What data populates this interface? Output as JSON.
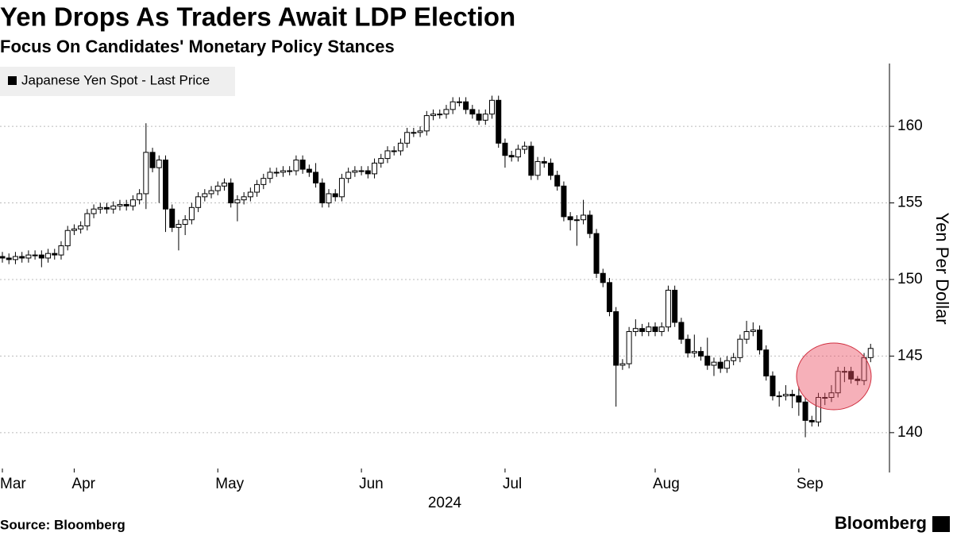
{
  "chart_data": {
    "type": "candlestick",
    "title": "Yen Drops As Traders Await LDP Election",
    "subtitle": "Focus On Candidates' Monetary Policy Stances",
    "x_label": "2024",
    "y_label": "Yen Per Dollar",
    "ylim": [
      137.4,
      164.1
    ],
    "yticks": [
      140,
      145,
      150,
      155,
      160
    ],
    "grid": true,
    "xticks": [
      {
        "value": 0,
        "label": "Mar"
      },
      {
        "value": 11,
        "label": "Apr"
      },
      {
        "value": 33,
        "label": "May"
      },
      {
        "value": 55,
        "label": "Jun"
      },
      {
        "value": 77,
        "label": "Jul"
      },
      {
        "value": 100,
        "label": "Aug"
      },
      {
        "value": 122,
        "label": "Sep"
      }
    ],
    "series": [
      {
        "name": "Japanese Yen Spot - Last Price",
        "color": "#000000",
        "up_color": "#ffffff",
        "open": [
          151.5,
          151.4,
          151.3,
          151.5,
          151.4,
          151.6,
          151.6,
          151.4,
          151.7,
          151.6,
          152.2,
          153.2,
          153.3,
          153.5,
          154.3,
          154.6,
          154.7,
          154.6,
          154.8,
          154.9,
          154.8,
          155.2,
          155.6,
          158.3,
          157.3,
          157.8,
          154.6,
          153.4,
          153.6,
          153.9,
          154.7,
          155.4,
          155.6,
          155.8,
          156.1,
          156.3,
          155.0,
          155.2,
          155.4,
          155.7,
          156.2,
          156.6,
          157.0,
          157.0,
          157.1,
          157.1,
          157.8,
          157.2,
          157.0,
          156.3,
          155.0,
          155.6,
          155.4,
          156.6,
          157.0,
          157.1,
          157.1,
          156.9,
          157.6,
          157.9,
          158.4,
          158.4,
          158.9,
          159.6,
          159.6,
          159.7,
          160.7,
          160.8,
          160.8,
          161.1,
          161.6,
          161.6,
          161.1,
          160.8,
          160.4,
          160.8,
          161.7,
          158.9,
          158.1,
          158.0,
          158.5,
          158.7,
          156.8,
          157.7,
          157.6,
          156.8,
          156.1,
          154.1,
          153.9,
          153.9,
          154.2,
          153.0,
          150.4,
          149.8,
          147.9,
          144.4,
          144.5,
          146.6,
          146.8,
          146.6,
          146.9,
          146.6,
          146.9,
          149.3,
          147.2,
          146.1,
          145.2,
          145.3,
          145.0,
          144.4,
          144.6,
          144.2,
          144.7,
          144.9,
          146.1,
          146.6,
          146.7,
          145.4,
          143.7,
          142.4,
          142.4,
          142.5,
          142.4,
          142.0,
          140.8,
          140.7,
          142.3,
          142.3,
          142.6,
          144.0,
          144.0,
          143.5,
          143.4,
          144.9
        ],
        "high": [
          151.8,
          151.7,
          151.8,
          151.8,
          151.9,
          151.9,
          151.9,
          152.0,
          152.0,
          152.5,
          153.5,
          153.6,
          153.8,
          154.6,
          154.9,
          155.0,
          155.0,
          155.1,
          155.2,
          155.2,
          155.5,
          155.9,
          160.2,
          158.6,
          158.1,
          158.1,
          154.9,
          153.9,
          154.2,
          155.0,
          155.7,
          155.9,
          156.1,
          156.4,
          156.6,
          156.6,
          155.5,
          155.7,
          156.0,
          156.5,
          156.9,
          157.3,
          157.3,
          157.4,
          157.4,
          158.1,
          158.1,
          157.5,
          157.6,
          156.6,
          155.9,
          155.9,
          156.9,
          157.3,
          157.4,
          157.4,
          157.4,
          157.9,
          158.2,
          158.7,
          158.7,
          159.2,
          159.9,
          159.9,
          160.0,
          161.0,
          161.1,
          161.1,
          161.4,
          161.9,
          161.9,
          161.9,
          161.4,
          161.1,
          161.1,
          162.0,
          162.0,
          159.2,
          158.4,
          158.8,
          159.0,
          159.0,
          158.0,
          158.0,
          157.9,
          157.1,
          156.4,
          154.4,
          154.2,
          155.2,
          154.5,
          153.3,
          150.7,
          150.1,
          148.2,
          144.8,
          146.9,
          147.4,
          147.1,
          147.2,
          147.2,
          147.2,
          149.6,
          149.6,
          147.5,
          146.4,
          146.4,
          145.6,
          146.2,
          144.9,
          144.9,
          145.0,
          145.2,
          146.4,
          147.3,
          147.2,
          147.0,
          145.7,
          144.0,
          142.7,
          143.1,
          142.8,
          143.0,
          142.3,
          141.1,
          142.6,
          142.6,
          143.1,
          144.3,
          144.3,
          144.3,
          143.7,
          145.2,
          145.8
        ],
        "low": [
          151.1,
          151.0,
          151.0,
          151.1,
          151.1,
          151.3,
          150.8,
          151.1,
          151.3,
          151.3,
          151.9,
          152.9,
          153.0,
          153.2,
          154.0,
          154.3,
          154.3,
          154.3,
          154.5,
          154.5,
          154.5,
          154.9,
          154.6,
          157.0,
          155.0,
          153.1,
          153.1,
          151.9,
          152.9,
          153.6,
          154.4,
          155.1,
          155.3,
          155.5,
          155.8,
          154.7,
          153.8,
          154.9,
          155.1,
          155.4,
          155.9,
          156.3,
          156.7,
          156.7,
          156.8,
          156.8,
          156.9,
          156.7,
          156.0,
          154.7,
          154.7,
          155.1,
          155.1,
          156.3,
          156.7,
          156.8,
          156.6,
          156.6,
          157.3,
          157.6,
          158.1,
          158.1,
          158.6,
          159.3,
          159.3,
          159.4,
          160.4,
          160.5,
          160.5,
          160.8,
          161.3,
          160.8,
          160.5,
          160.1,
          160.1,
          160.5,
          158.6,
          157.3,
          157.7,
          157.7,
          158.2,
          156.5,
          156.5,
          157.3,
          156.5,
          155.8,
          153.8,
          153.2,
          152.2,
          153.6,
          152.7,
          150.1,
          149.5,
          147.6,
          141.7,
          144.1,
          144.2,
          146.3,
          146.3,
          146.3,
          146.3,
          146.3,
          146.6,
          146.9,
          145.8,
          144.9,
          144.9,
          144.7,
          144.1,
          143.7,
          143.9,
          143.9,
          144.4,
          144.6,
          145.8,
          146.3,
          145.1,
          143.4,
          142.1,
          141.7,
          142.1,
          141.6,
          141.1,
          139.7,
          140.4,
          140.4,
          141.8,
          142.0,
          142.3,
          143.3,
          143.2,
          143.1,
          143.1,
          144.6
        ],
        "close": [
          151.4,
          151.3,
          151.5,
          151.4,
          151.6,
          151.6,
          151.4,
          151.7,
          151.6,
          152.2,
          153.2,
          153.3,
          153.5,
          154.3,
          154.6,
          154.7,
          154.6,
          154.8,
          154.9,
          154.8,
          155.2,
          155.6,
          158.3,
          157.3,
          157.8,
          154.6,
          153.4,
          153.6,
          153.9,
          154.7,
          155.4,
          155.6,
          155.8,
          156.1,
          156.3,
          155.0,
          155.2,
          155.4,
          155.7,
          156.2,
          156.6,
          157.0,
          157.0,
          157.1,
          157.1,
          157.8,
          157.2,
          157.0,
          156.3,
          155.0,
          155.6,
          155.4,
          156.6,
          157.0,
          157.1,
          157.1,
          156.9,
          157.6,
          157.9,
          158.4,
          158.4,
          158.9,
          159.6,
          159.6,
          159.7,
          160.7,
          160.8,
          160.8,
          161.1,
          161.6,
          161.6,
          161.1,
          160.8,
          160.4,
          160.8,
          161.7,
          158.9,
          158.1,
          158.0,
          158.5,
          158.7,
          156.8,
          157.7,
          157.6,
          156.8,
          156.1,
          154.1,
          153.9,
          153.9,
          154.2,
          153.0,
          150.4,
          149.8,
          147.9,
          144.4,
          144.5,
          146.6,
          146.8,
          146.6,
          146.9,
          146.6,
          146.9,
          149.3,
          147.2,
          146.1,
          145.2,
          145.3,
          145.0,
          144.4,
          144.6,
          144.2,
          144.7,
          144.9,
          146.1,
          146.6,
          146.7,
          145.4,
          143.7,
          142.4,
          142.4,
          142.5,
          142.4,
          142.0,
          140.8,
          140.7,
          142.3,
          142.3,
          142.6,
          144.0,
          144.0,
          143.5,
          143.4,
          144.9,
          145.5
        ]
      }
    ]
  },
  "source": "Source: Bloomberg",
  "logo": "Bloomberg"
}
